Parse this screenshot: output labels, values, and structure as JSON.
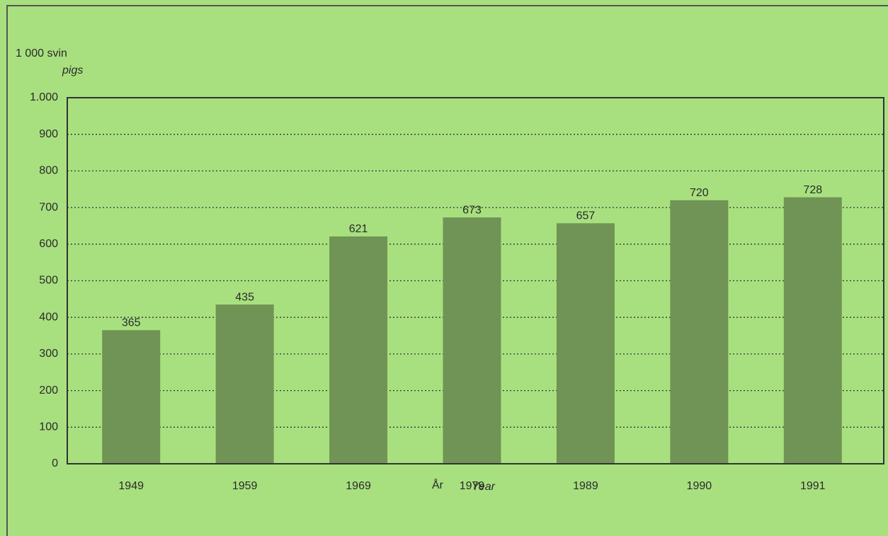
{
  "chart_data": {
    "type": "bar",
    "ylabel": "1 000 svin",
    "ylabel_translation": "pigs",
    "xlabel": "År",
    "xlabel_translation": "Year",
    "categories": [
      "1949",
      "1959",
      "1969",
      "1979",
      "1989",
      "1990",
      "1991"
    ],
    "values": [
      365,
      435,
      621,
      673,
      657,
      720,
      728
    ],
    "color": "#6f9455",
    "ylim": [
      0,
      1000
    ],
    "yticks": [
      0,
      100,
      200,
      300,
      400,
      500,
      600,
      700,
      800,
      900,
      {
        "value": 1000,
        "label": "1.000"
      }
    ],
    "grid": true
  }
}
